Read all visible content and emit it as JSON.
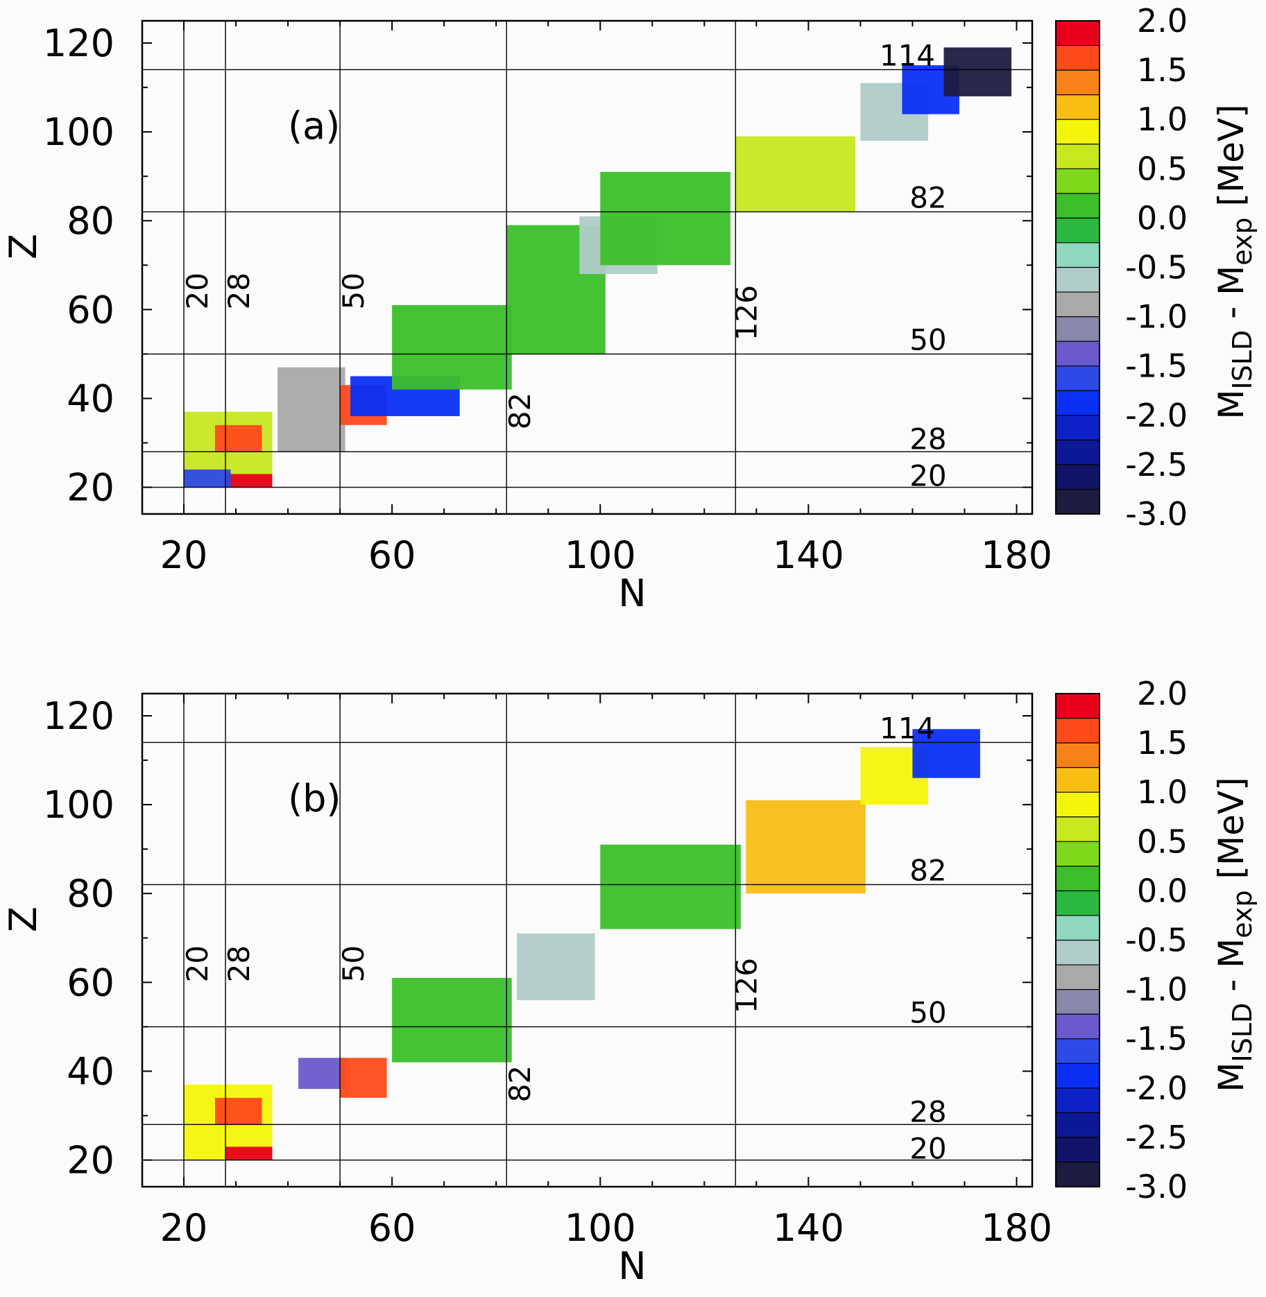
{
  "chart_data": [
    {
      "type": "heatmap",
      "panel_label": "(a)",
      "xlabel": "N",
      "ylabel": "Z",
      "xlim": [
        12,
        183
      ],
      "ylim": [
        14,
        125
      ],
      "xticks": [
        20,
        60,
        100,
        140,
        180
      ],
      "yticks": [
        20,
        40,
        60,
        80,
        100,
        120
      ],
      "magic_numbers_N": [
        {
          "value": 20,
          "label": "20"
        },
        {
          "value": 28,
          "label": "28"
        },
        {
          "value": 50,
          "label": "50"
        },
        {
          "value": 82,
          "label": "82"
        },
        {
          "value": 126,
          "label": "126"
        }
      ],
      "magic_numbers_Z": [
        {
          "value": 20,
          "label": "20"
        },
        {
          "value": 28,
          "label": "28"
        },
        {
          "value": 50,
          "label": "50"
        },
        {
          "value": 82,
          "label": "82"
        },
        {
          "value": 114,
          "label": "114"
        }
      ],
      "colorbar": {
        "title_main": "M",
        "title_sub1": "ISLD",
        "title_mid": " - M",
        "title_sub2": "exp",
        "title_unit": "  [MeV]",
        "range": [
          -3.0,
          2.0
        ],
        "tick_labels": [
          "2.0",
          "1.5",
          "1.0",
          "0.5",
          "0.0",
          "-0.5",
          "-1.0",
          "-1.5",
          "-2.0",
          "-2.5",
          "-3.0"
        ],
        "colors": [
          "#e8001c",
          "#ff4a1a",
          "#f7821a",
          "#f7bf14",
          "#f5f50a",
          "#c8e71f",
          "#7fd91a",
          "#3cbf2a",
          "#2ab840",
          "#8fd8c0",
          "#b0ccc8",
          "#a9a9a9",
          "#8888aa",
          "#6a5acd",
          "#2c4ae6",
          "#0a2ff5",
          "#0c22c8",
          "#0c1896",
          "#121468",
          "#1c1c40"
        ]
      },
      "regions": [
        {
          "N": [
            20,
            36
          ],
          "Z": [
            20,
            36
          ],
          "value": 0.6
        },
        {
          "N": [
            26,
            34
          ],
          "Z": [
            28,
            33
          ],
          "value": 1.6
        },
        {
          "N": [
            28,
            36
          ],
          "Z": [
            20,
            22
          ],
          "value": 2.0
        },
        {
          "N": [
            20,
            28
          ],
          "Z": [
            20,
            23
          ],
          "value": -1.5
        },
        {
          "N": [
            38,
            50
          ],
          "Z": [
            28,
            46
          ],
          "value": -0.8
        },
        {
          "N": [
            50,
            58
          ],
          "Z": [
            34,
            42
          ],
          "value": 1.7
        },
        {
          "N": [
            52,
            72
          ],
          "Z": [
            36,
            44
          ],
          "value": -1.8
        },
        {
          "N": [
            60,
            82
          ],
          "Z": [
            42,
            60
          ],
          "value": 0.1
        },
        {
          "N": [
            82,
            100
          ],
          "Z": [
            50,
            78
          ],
          "value": 0.1
        },
        {
          "N": [
            96,
            110
          ],
          "Z": [
            68,
            80
          ],
          "value": -0.6
        },
        {
          "N": [
            100,
            124
          ],
          "Z": [
            70,
            90
          ],
          "value": 0.1
        },
        {
          "N": [
            126,
            148
          ],
          "Z": [
            82,
            98
          ],
          "value": 0.6
        },
        {
          "N": [
            150,
            162
          ],
          "Z": [
            98,
            110
          ],
          "value": -0.6
        },
        {
          "N": [
            158,
            168
          ],
          "Z": [
            104,
            114
          ],
          "value": -1.9
        },
        {
          "N": [
            166,
            178
          ],
          "Z": [
            108,
            118
          ],
          "value": -2.9
        }
      ]
    },
    {
      "type": "heatmap",
      "panel_label": "(b)",
      "xlabel": "N",
      "ylabel": "Z",
      "xlim": [
        12,
        183
      ],
      "ylim": [
        14,
        125
      ],
      "xticks": [
        20,
        60,
        100,
        140,
        180
      ],
      "yticks": [
        20,
        40,
        60,
        80,
        100,
        120
      ],
      "magic_numbers_N": [
        {
          "value": 20,
          "label": "20"
        },
        {
          "value": 28,
          "label": "28"
        },
        {
          "value": 50,
          "label": "50"
        },
        {
          "value": 82,
          "label": "82"
        },
        {
          "value": 126,
          "label": "126"
        }
      ],
      "magic_numbers_Z": [
        {
          "value": 20,
          "label": "20"
        },
        {
          "value": 28,
          "label": "28"
        },
        {
          "value": 50,
          "label": "50"
        },
        {
          "value": 82,
          "label": "82"
        },
        {
          "value": 114,
          "label": "114"
        }
      ],
      "colorbar": {
        "title_main": "M",
        "title_sub1": "ISLD",
        "title_mid": " - M",
        "title_sub2": "exp",
        "title_unit": "  [MeV]",
        "range": [
          -3.0,
          2.0
        ],
        "tick_labels": [
          "2.0",
          "1.5",
          "1.0",
          "0.5",
          "0.0",
          "-0.5",
          "-1.0",
          "-1.5",
          "-2.0",
          "-2.5",
          "-3.0"
        ],
        "colors": [
          "#e8001c",
          "#ff4a1a",
          "#f7821a",
          "#f7bf14",
          "#f5f50a",
          "#c8e71f",
          "#7fd91a",
          "#3cbf2a",
          "#2ab840",
          "#8fd8c0",
          "#b0ccc8",
          "#a9a9a9",
          "#8888aa",
          "#6a5acd",
          "#2c4ae6",
          "#0a2ff5",
          "#0c22c8",
          "#0c1896",
          "#121468",
          "#1c1c40"
        ]
      },
      "regions": [
        {
          "N": [
            20,
            36
          ],
          "Z": [
            20,
            36
          ],
          "value": 1.0
        },
        {
          "N": [
            26,
            34
          ],
          "Z": [
            28,
            33
          ],
          "value": 1.7
        },
        {
          "N": [
            28,
            36
          ],
          "Z": [
            20,
            22
          ],
          "value": 2.0
        },
        {
          "N": [
            42,
            50
          ],
          "Z": [
            36,
            42
          ],
          "value": -1.4
        },
        {
          "N": [
            50,
            58
          ],
          "Z": [
            34,
            42
          ],
          "value": 1.7
        },
        {
          "N": [
            60,
            82
          ],
          "Z": [
            42,
            60
          ],
          "value": 0.1
        },
        {
          "N": [
            84,
            98
          ],
          "Z": [
            56,
            70
          ],
          "value": -0.7
        },
        {
          "N": [
            100,
            126
          ],
          "Z": [
            72,
            90
          ],
          "value": 0.1
        },
        {
          "N": [
            128,
            150
          ],
          "Z": [
            80,
            100
          ],
          "value": 1.2
        },
        {
          "N": [
            150,
            162
          ],
          "Z": [
            100,
            112
          ],
          "value": 0.8
        },
        {
          "N": [
            160,
            172
          ],
          "Z": [
            106,
            116
          ],
          "value": -1.9
        }
      ]
    }
  ]
}
